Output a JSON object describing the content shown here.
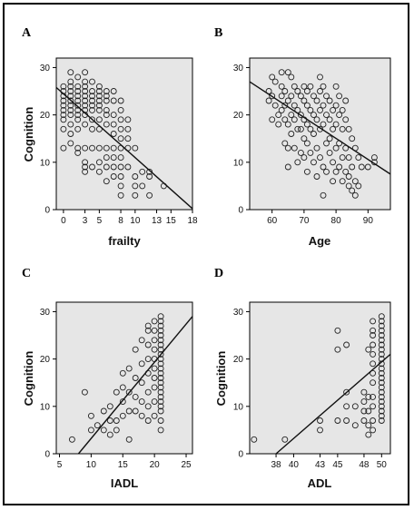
{
  "chart_data": [
    {
      "panel": "A",
      "type": "scatter",
      "xlabel": "frailty",
      "ylabel": "Cognition",
      "xlim": [
        -1,
        18
      ],
      "ylim": [
        0,
        32
      ],
      "xticks": [
        0,
        3,
        5,
        8,
        10,
        13,
        15,
        18
      ],
      "yticks": [
        0,
        10,
        20,
        30
      ],
      "grid": false,
      "points": [
        [
          0,
          26
        ],
        [
          0,
          25
        ],
        [
          0,
          24
        ],
        [
          0,
          23
        ],
        [
          0,
          22
        ],
        [
          0,
          21
        ],
        [
          0,
          20
        ],
        [
          0,
          19
        ],
        [
          0,
          17
        ],
        [
          0,
          13
        ],
        [
          1,
          29
        ],
        [
          1,
          27
        ],
        [
          1,
          26
        ],
        [
          1,
          25
        ],
        [
          1,
          24
        ],
        [
          1,
          23
        ],
        [
          1,
          22
        ],
        [
          1,
          21
        ],
        [
          1,
          20
        ],
        [
          1,
          18
        ],
        [
          1,
          16
        ],
        [
          1,
          14
        ],
        [
          2,
          28
        ],
        [
          2,
          26
        ],
        [
          2,
          25
        ],
        [
          2,
          24
        ],
        [
          2,
          23
        ],
        [
          2,
          22
        ],
        [
          2,
          21
        ],
        [
          2,
          20
        ],
        [
          2,
          19
        ],
        [
          2,
          17
        ],
        [
          2,
          13
        ],
        [
          2,
          12
        ],
        [
          3,
          29
        ],
        [
          3,
          27
        ],
        [
          3,
          26
        ],
        [
          3,
          25
        ],
        [
          3,
          24
        ],
        [
          3,
          23
        ],
        [
          3,
          22
        ],
        [
          3,
          21
        ],
        [
          3,
          20
        ],
        [
          3,
          18
        ],
        [
          3,
          13
        ],
        [
          3,
          10
        ],
        [
          3,
          9
        ],
        [
          3,
          8
        ],
        [
          4,
          27
        ],
        [
          4,
          25
        ],
        [
          4,
          24
        ],
        [
          4,
          23
        ],
        [
          4,
          22
        ],
        [
          4,
          21
        ],
        [
          4,
          19
        ],
        [
          4,
          17
        ],
        [
          4,
          13
        ],
        [
          4,
          9
        ],
        [
          5,
          26
        ],
        [
          5,
          25
        ],
        [
          5,
          24
        ],
        [
          5,
          23
        ],
        [
          5,
          22
        ],
        [
          5,
          21
        ],
        [
          5,
          19
        ],
        [
          5,
          17
        ],
        [
          5,
          13
        ],
        [
          5,
          10
        ],
        [
          5,
          8
        ],
        [
          6,
          25
        ],
        [
          6,
          24
        ],
        [
          6,
          23
        ],
        [
          6,
          21
        ],
        [
          6,
          20
        ],
        [
          6,
          18
        ],
        [
          6,
          13
        ],
        [
          6,
          11
        ],
        [
          6,
          9
        ],
        [
          6,
          6
        ],
        [
          7,
          25
        ],
        [
          7,
          23
        ],
        [
          7,
          20
        ],
        [
          7,
          18
        ],
        [
          7,
          16
        ],
        [
          7,
          13
        ],
        [
          7,
          11
        ],
        [
          7,
          9
        ],
        [
          7,
          7
        ],
        [
          8,
          23
        ],
        [
          8,
          21
        ],
        [
          8,
          19
        ],
        [
          8,
          17
        ],
        [
          8,
          15
        ],
        [
          8,
          13
        ],
        [
          8,
          11
        ],
        [
          8,
          9
        ],
        [
          8,
          7
        ],
        [
          8,
          5
        ],
        [
          8,
          3
        ],
        [
          9,
          19
        ],
        [
          9,
          17
        ],
        [
          9,
          15
        ],
        [
          9,
          13
        ],
        [
          9,
          9
        ],
        [
          10,
          13
        ],
        [
          10,
          7
        ],
        [
          10,
          5
        ],
        [
          10,
          3
        ],
        [
          11,
          8
        ],
        [
          11,
          5
        ],
        [
          12,
          8
        ],
        [
          12,
          7
        ],
        [
          12,
          3
        ],
        [
          14,
          5
        ]
      ],
      "fit_line": {
        "x": [
          -1,
          18
        ],
        "y": [
          25.8,
          0.2
        ]
      }
    },
    {
      "panel": "B",
      "type": "scatter",
      "xlabel": "Age",
      "ylabel": "",
      "xlim": [
        53,
        97
      ],
      "ylim": [
        0,
        32
      ],
      "xticks": [
        60,
        70,
        80,
        90
      ],
      "yticks": [
        0,
        10,
        20,
        30
      ],
      "grid": false,
      "points": [
        [
          59,
          25
        ],
        [
          59,
          23
        ],
        [
          60,
          28
        ],
        [
          60,
          24
        ],
        [
          60,
          19
        ],
        [
          61,
          27
        ],
        [
          61,
          22
        ],
        [
          62,
          20
        ],
        [
          62,
          18
        ],
        [
          63,
          29
        ],
        [
          63,
          26
        ],
        [
          63,
          24
        ],
        [
          63,
          21
        ],
        [
          64,
          25
        ],
        [
          64,
          22
        ],
        [
          64,
          19
        ],
        [
          64,
          14
        ],
        [
          65,
          29
        ],
        [
          65,
          23
        ],
        [
          65,
          18
        ],
        [
          65,
          13
        ],
        [
          65,
          9
        ],
        [
          66,
          28
        ],
        [
          66,
          24
        ],
        [
          66,
          20
        ],
        [
          66,
          16
        ],
        [
          67,
          26
        ],
        [
          67,
          22
        ],
        [
          67,
          19
        ],
        [
          67,
          13
        ],
        [
          68,
          25
        ],
        [
          68,
          21
        ],
        [
          68,
          17
        ],
        [
          68,
          10
        ],
        [
          69,
          24
        ],
        [
          69,
          20
        ],
        [
          69,
          17
        ],
        [
          69,
          12
        ],
        [
          70,
          26
        ],
        [
          70,
          23
        ],
        [
          70,
          19
        ],
        [
          70,
          15
        ],
        [
          70,
          11
        ],
        [
          71,
          25
        ],
        [
          71,
          22
        ],
        [
          71,
          18
        ],
        [
          71,
          14
        ],
        [
          71,
          8
        ],
        [
          72,
          26
        ],
        [
          72,
          21
        ],
        [
          72,
          17
        ],
        [
          72,
          12
        ],
        [
          73,
          24
        ],
        [
          73,
          20
        ],
        [
          73,
          16
        ],
        [
          73,
          10
        ],
        [
          74,
          23
        ],
        [
          74,
          19
        ],
        [
          74,
          13
        ],
        [
          74,
          7
        ],
        [
          75,
          28
        ],
        [
          75,
          25
        ],
        [
          75,
          21
        ],
        [
          75,
          17
        ],
        [
          75,
          11
        ],
        [
          76,
          26
        ],
        [
          76,
          22
        ],
        [
          76,
          18
        ],
        [
          76,
          9
        ],
        [
          76,
          3
        ],
        [
          77,
          24
        ],
        [
          77,
          20
        ],
        [
          77,
          14
        ],
        [
          77,
          8
        ],
        [
          78,
          23
        ],
        [
          78,
          19
        ],
        [
          78,
          15
        ],
        [
          78,
          12
        ],
        [
          79,
          21
        ],
        [
          79,
          17
        ],
        [
          79,
          10
        ],
        [
          79,
          6
        ],
        [
          80,
          26
        ],
        [
          80,
          22
        ],
        [
          80,
          18
        ],
        [
          80,
          13
        ],
        [
          80,
          8
        ],
        [
          81,
          24
        ],
        [
          81,
          20
        ],
        [
          81,
          14
        ],
        [
          81,
          9
        ],
        [
          82,
          21
        ],
        [
          82,
          17
        ],
        [
          82,
          11
        ],
        [
          82,
          6
        ],
        [
          83,
          23
        ],
        [
          83,
          19
        ],
        [
          83,
          13
        ],
        [
          83,
          8
        ],
        [
          84,
          17
        ],
        [
          84,
          11
        ],
        [
          84,
          7
        ],
        [
          84,
          5
        ],
        [
          85,
          15
        ],
        [
          85,
          9
        ],
        [
          85,
          4
        ],
        [
          86,
          13
        ],
        [
          86,
          6
        ],
        [
          86,
          3
        ],
        [
          87,
          11
        ],
        [
          87,
          5
        ],
        [
          88,
          9
        ],
        [
          90,
          9
        ],
        [
          92,
          11
        ],
        [
          92,
          10
        ]
      ],
      "fit_line": {
        "x": [
          53,
          97
        ],
        "y": [
          27,
          7.5
        ]
      }
    },
    {
      "panel": "C",
      "type": "scatter",
      "xlabel": "IADL",
      "ylabel": "Cognition",
      "xlim": [
        4.5,
        26
      ],
      "ylim": [
        0,
        32
      ],
      "xticks": [
        5,
        10,
        15,
        20,
        25
      ],
      "yticks": [
        0,
        10,
        20,
        30
      ],
      "grid": false,
      "points": [
        [
          7,
          3
        ],
        [
          9,
          13
        ],
        [
          10,
          5
        ],
        [
          10,
          8
        ],
        [
          11,
          6
        ],
        [
          12,
          5
        ],
        [
          12,
          9
        ],
        [
          13,
          4
        ],
        [
          13,
          7
        ],
        [
          13,
          10
        ],
        [
          14,
          5
        ],
        [
          14,
          7
        ],
        [
          14,
          13
        ],
        [
          15,
          8
        ],
        [
          15,
          11
        ],
        [
          15,
          14
        ],
        [
          15,
          17
        ],
        [
          16,
          3
        ],
        [
          16,
          9
        ],
        [
          16,
          13
        ],
        [
          16,
          18
        ],
        [
          17,
          9
        ],
        [
          17,
          12
        ],
        [
          17,
          16
        ],
        [
          17,
          22
        ],
        [
          18,
          8
        ],
        [
          18,
          11
        ],
        [
          18,
          15
        ],
        [
          18,
          19
        ],
        [
          18,
          24
        ],
        [
          19,
          7
        ],
        [
          19,
          10
        ],
        [
          19,
          13
        ],
        [
          19,
          17
        ],
        [
          19,
          20
        ],
        [
          19,
          23
        ],
        [
          19,
          26
        ],
        [
          19,
          27
        ],
        [
          20,
          8
        ],
        [
          20,
          11
        ],
        [
          20,
          14
        ],
        [
          20,
          16
        ],
        [
          20,
          18
        ],
        [
          20,
          20
        ],
        [
          20,
          22
        ],
        [
          20,
          24
        ],
        [
          20,
          26
        ],
        [
          20,
          28
        ],
        [
          21,
          5
        ],
        [
          21,
          7
        ],
        [
          21,
          9
        ],
        [
          21,
          10
        ],
        [
          21,
          11
        ],
        [
          21,
          12
        ],
        [
          21,
          13
        ],
        [
          21,
          14
        ],
        [
          21,
          15
        ],
        [
          21,
          16
        ],
        [
          21,
          17
        ],
        [
          21,
          18
        ],
        [
          21,
          19
        ],
        [
          21,
          20
        ],
        [
          21,
          21
        ],
        [
          21,
          22
        ],
        [
          21,
          23
        ],
        [
          21,
          24
        ],
        [
          21,
          25
        ],
        [
          21,
          26
        ],
        [
          21,
          27
        ],
        [
          21,
          28
        ],
        [
          21,
          29
        ]
      ],
      "fit_line": {
        "x": [
          8,
          26
        ],
        "y": [
          0,
          29
        ]
      }
    },
    {
      "panel": "D",
      "type": "scatter",
      "xlabel": "ADL",
      "ylabel": "Cognition",
      "xlim": [
        35,
        51
      ],
      "ylim": [
        0,
        32
      ],
      "xticks": [
        38,
        40,
        43,
        45,
        48,
        50
      ],
      "yticks": [
        0,
        10,
        20,
        30
      ],
      "grid": false,
      "points": [
        [
          35.5,
          3
        ],
        [
          39,
          3
        ],
        [
          43,
          5
        ],
        [
          43,
          7
        ],
        [
          45,
          7
        ],
        [
          45,
          22
        ],
        [
          45,
          26
        ],
        [
          46,
          7
        ],
        [
          46,
          10
        ],
        [
          46,
          13
        ],
        [
          46,
          23
        ],
        [
          47,
          6
        ],
        [
          47,
          10
        ],
        [
          48,
          7
        ],
        [
          48,
          9
        ],
        [
          48,
          11
        ],
        [
          48,
          13
        ],
        [
          48.5,
          4
        ],
        [
          48.5,
          6
        ],
        [
          48.5,
          9
        ],
        [
          48.5,
          12
        ],
        [
          48.5,
          22
        ],
        [
          49,
          5
        ],
        [
          49,
          7
        ],
        [
          49,
          10
        ],
        [
          49,
          12
        ],
        [
          49,
          15
        ],
        [
          49,
          17
        ],
        [
          49,
          19
        ],
        [
          49,
          21
        ],
        [
          49,
          23
        ],
        [
          49,
          25
        ],
        [
          49,
          26
        ],
        [
          49,
          28
        ],
        [
          50,
          7
        ],
        [
          50,
          8
        ],
        [
          50,
          9
        ],
        [
          50,
          10
        ],
        [
          50,
          11
        ],
        [
          50,
          12
        ],
        [
          50,
          13
        ],
        [
          50,
          14
        ],
        [
          50,
          15
        ],
        [
          50,
          16
        ],
        [
          50,
          17
        ],
        [
          50,
          18
        ],
        [
          50,
          19
        ],
        [
          50,
          20
        ],
        [
          50,
          21
        ],
        [
          50,
          22
        ],
        [
          50,
          23
        ],
        [
          50,
          24
        ],
        [
          50,
          25
        ],
        [
          50,
          26
        ],
        [
          50,
          27
        ],
        [
          50,
          28
        ],
        [
          50,
          29
        ]
      ],
      "fit_line": {
        "x": [
          38,
          51
        ],
        "y": [
          0,
          21
        ]
      }
    }
  ]
}
